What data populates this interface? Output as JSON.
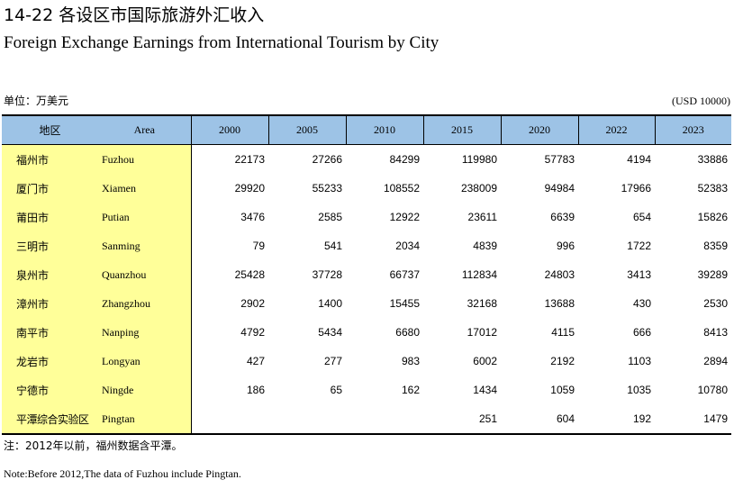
{
  "title_cn": "14-22  各设区市国际旅游外汇收入",
  "title_en": "Foreign Exchange Earnings from International Tourism by City",
  "unit_cn": "单位：万美元",
  "unit_en": "(USD 10000)",
  "header": {
    "area_cn": "地区",
    "area_en": "Area",
    "years": [
      "2000",
      "2005",
      "2010",
      "2015",
      "2020",
      "2022",
      "2023"
    ]
  },
  "rows": [
    {
      "cn": "福州市",
      "en": "Fuzhou",
      "values": [
        "22173",
        "27266",
        "84299",
        "119980",
        "57783",
        "4194",
        "33886"
      ]
    },
    {
      "cn": "厦门市",
      "en": "Xiamen",
      "values": [
        "29920",
        "55233",
        "108552",
        "238009",
        "94984",
        "17966",
        "52383"
      ]
    },
    {
      "cn": "莆田市",
      "en": "Putian",
      "values": [
        "3476",
        "2585",
        "12922",
        "23611",
        "6639",
        "654",
        "15826"
      ]
    },
    {
      "cn": "三明市",
      "en": "Sanming",
      "values": [
        "79",
        "541",
        "2034",
        "4839",
        "996",
        "1722",
        "8359"
      ]
    },
    {
      "cn": "泉州市",
      "en": "Quanzhou",
      "values": [
        "25428",
        "37728",
        "66737",
        "112834",
        "24803",
        "3413",
        "39289"
      ]
    },
    {
      "cn": "漳州市",
      "en": "Zhangzhou",
      "values": [
        "2902",
        "1400",
        "15455",
        "32168",
        "13688",
        "430",
        "2530"
      ]
    },
    {
      "cn": "南平市",
      "en": "Nanping",
      "values": [
        "4792",
        "5434",
        "6680",
        "17012",
        "4115",
        "666",
        "8413"
      ]
    },
    {
      "cn": "龙岩市",
      "en": "Longyan",
      "values": [
        "427",
        "277",
        "983",
        "6002",
        "2192",
        "1103",
        "2894"
      ]
    },
    {
      "cn": "宁德市",
      "en": "Ningde",
      "values": [
        "186",
        "65",
        "162",
        "1434",
        "1059",
        "1035",
        "10780"
      ]
    },
    {
      "cn": "平潭综合实验区",
      "en": "Pingtan",
      "values": [
        "",
        "",
        "",
        "251",
        "604",
        "192",
        "1479"
      ]
    }
  ],
  "note_cn": "注：2012年以前，福州数据含平潭。",
  "note_en": "Note:Before 2012,The data of Fuzhou include Pingtan."
}
